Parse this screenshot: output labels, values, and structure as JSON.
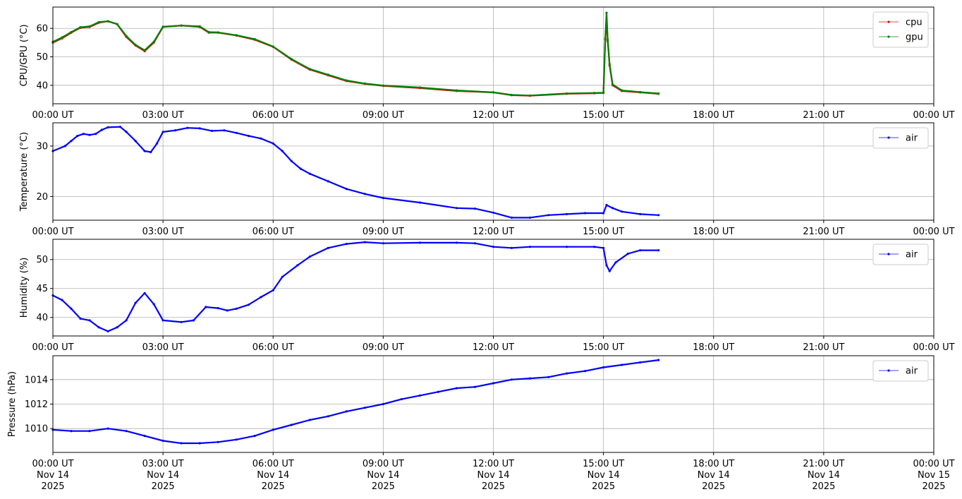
{
  "chart_data": [
    {
      "type": "line",
      "ylabel": "CPU/GPU (°C)",
      "ylim": [
        33.5,
        67.5
      ],
      "yticks": [
        40,
        50,
        60
      ],
      "xlim": [
        "2025-11-14 00:00",
        "2025-11-15 00:00"
      ],
      "xtick_labels": [
        "00:00 UT",
        "03:00 UT",
        "06:00 UT",
        "09:00 UT",
        "12:00 UT",
        "15:00 UT",
        "18:00 UT",
        "21:00 UT",
        "00:00 UT"
      ],
      "grid": true,
      "legend_position": "upper-right",
      "series": [
        {
          "name": "cpu",
          "color": "#ff0000",
          "points": [
            [
              "00:00",
              55.0
            ],
            [
              "00:15",
              56.5
            ],
            [
              "00:30",
              58.5
            ],
            [
              "00:45",
              60.2
            ],
            [
              "01:00",
              60.5
            ],
            [
              "01:15",
              62.0
            ],
            [
              "01:30",
              62.5
            ],
            [
              "01:45",
              61.5
            ],
            [
              "02:00",
              57.0
            ],
            [
              "02:15",
              54.0
            ],
            [
              "02:30",
              52.0
            ],
            [
              "02:45",
              55.0
            ],
            [
              "03:00",
              60.5
            ],
            [
              "03:30",
              61.0
            ],
            [
              "04:00",
              60.5
            ],
            [
              "04:15",
              58.5
            ],
            [
              "04:30",
              58.5
            ],
            [
              "05:00",
              57.5
            ],
            [
              "05:30",
              56.0
            ],
            [
              "06:00",
              53.5
            ],
            [
              "06:30",
              49.0
            ],
            [
              "07:00",
              45.5
            ],
            [
              "07:30",
              43.5
            ],
            [
              "08:00",
              41.5
            ],
            [
              "08:30",
              40.5
            ],
            [
              "09:00",
              39.8
            ],
            [
              "10:00",
              39.0
            ],
            [
              "11:00",
              38.0
            ],
            [
              "12:00",
              37.5
            ],
            [
              "12:30",
              36.5
            ],
            [
              "13:00",
              36.3
            ],
            [
              "14:00",
              37.0
            ],
            [
              "14:45",
              37.2
            ],
            [
              "15:00",
              37.3
            ],
            [
              "15:03",
              56.0
            ],
            [
              "15:05",
              63.0
            ],
            [
              "15:07",
              55.5
            ],
            [
              "15:10",
              47.0
            ],
            [
              "15:15",
              40.0
            ],
            [
              "15:30",
              38.0
            ],
            [
              "16:00",
              37.5
            ],
            [
              "16:30",
              37.0
            ]
          ]
        },
        {
          "name": "gpu",
          "color": "#008000",
          "points": [
            [
              "00:00",
              55.3
            ],
            [
              "00:15",
              56.8
            ],
            [
              "00:30",
              58.7
            ],
            [
              "00:45",
              60.4
            ],
            [
              "01:00",
              60.7
            ],
            [
              "01:15",
              62.2
            ],
            [
              "01:30",
              62.5
            ],
            [
              "01:45",
              61.5
            ],
            [
              "02:00",
              57.3
            ],
            [
              "02:15",
              54.2
            ],
            [
              "02:30",
              52.3
            ],
            [
              "02:45",
              55.3
            ],
            [
              "03:00",
              60.6
            ],
            [
              "03:30",
              61.0
            ],
            [
              "04:00",
              60.7
            ],
            [
              "04:15",
              58.7
            ],
            [
              "04:30",
              58.6
            ],
            [
              "05:00",
              57.6
            ],
            [
              "05:30",
              56.2
            ],
            [
              "06:00",
              53.6
            ],
            [
              "06:30",
              49.2
            ],
            [
              "07:00",
              45.7
            ],
            [
              "07:30",
              43.7
            ],
            [
              "08:00",
              41.7
            ],
            [
              "08:30",
              40.6
            ],
            [
              "09:00",
              39.9
            ],
            [
              "10:00",
              39.2
            ],
            [
              "11:00",
              38.2
            ],
            [
              "12:00",
              37.5
            ],
            [
              "12:30",
              36.6
            ],
            [
              "13:00",
              36.4
            ],
            [
              "14:00",
              37.1
            ],
            [
              "14:45",
              37.3
            ],
            [
              "15:00",
              37.4
            ],
            [
              "15:03",
              56.5
            ],
            [
              "15:05",
              65.5
            ],
            [
              "15:07",
              56.0
            ],
            [
              "15:10",
              47.5
            ],
            [
              "15:15",
              40.3
            ],
            [
              "15:30",
              38.2
            ],
            [
              "16:00",
              37.6
            ],
            [
              "16:30",
              37.1
            ]
          ]
        }
      ]
    },
    {
      "type": "line",
      "ylabel": "Temperature (°C)",
      "ylim": [
        15.3,
        34.6
      ],
      "yticks": [
        20,
        30
      ],
      "xlim": [
        "2025-11-14 00:00",
        "2025-11-15 00:00"
      ],
      "xtick_labels": [
        "00:00 UT",
        "03:00 UT",
        "06:00 UT",
        "09:00 UT",
        "12:00 UT",
        "15:00 UT",
        "18:00 UT",
        "21:00 UT",
        "00:00 UT"
      ],
      "grid": true,
      "legend_position": "upper-right",
      "series": [
        {
          "name": "air",
          "color": "#0000ff",
          "points": [
            [
              "00:00",
              29.0
            ],
            [
              "00:20",
              30.0
            ],
            [
              "00:30",
              31.0
            ],
            [
              "00:40",
              32.0
            ],
            [
              "00:50",
              32.4
            ],
            [
              "01:00",
              32.2
            ],
            [
              "01:10",
              32.4
            ],
            [
              "01:20",
              33.2
            ],
            [
              "01:30",
              33.7
            ],
            [
              "01:50",
              33.8
            ],
            [
              "02:00",
              32.8
            ],
            [
              "02:15",
              31.0
            ],
            [
              "02:30",
              29.0
            ],
            [
              "02:40",
              28.8
            ],
            [
              "02:50",
              30.5
            ],
            [
              "03:00",
              32.8
            ],
            [
              "03:20",
              33.1
            ],
            [
              "03:40",
              33.6
            ],
            [
              "04:00",
              33.5
            ],
            [
              "04:20",
              33.0
            ],
            [
              "04:40",
              33.1
            ],
            [
              "05:00",
              32.6
            ],
            [
              "05:20",
              32.0
            ],
            [
              "05:40",
              31.5
            ],
            [
              "06:00",
              30.5
            ],
            [
              "06:15",
              29.0
            ],
            [
              "06:30",
              27.0
            ],
            [
              "06:45",
              25.5
            ],
            [
              "07:00",
              24.5
            ],
            [
              "07:30",
              23.0
            ],
            [
              "08:00",
              21.5
            ],
            [
              "08:30",
              20.5
            ],
            [
              "09:00",
              19.7
            ],
            [
              "10:00",
              18.8
            ],
            [
              "11:00",
              17.7
            ],
            [
              "11:30",
              17.6
            ],
            [
              "12:00",
              16.8
            ],
            [
              "12:30",
              15.8
            ],
            [
              "13:00",
              15.8
            ],
            [
              "13:30",
              16.3
            ],
            [
              "14:00",
              16.5
            ],
            [
              "14:30",
              16.7
            ],
            [
              "15:00",
              16.7
            ],
            [
              "15:05",
              18.3
            ],
            [
              "15:15",
              17.7
            ],
            [
              "15:30",
              17.0
            ],
            [
              "16:00",
              16.5
            ],
            [
              "16:30",
              16.3
            ]
          ]
        }
      ]
    },
    {
      "type": "line",
      "ylabel": "Humidity (%)",
      "ylim": [
        36.8,
        53.5
      ],
      "yticks": [
        40,
        45,
        50
      ],
      "xlim": [
        "2025-11-14 00:00",
        "2025-11-15 00:00"
      ],
      "xtick_labels": [
        "00:00 UT",
        "03:00 UT",
        "06:00 UT",
        "09:00 UT",
        "12:00 UT",
        "15:00 UT",
        "18:00 UT",
        "21:00 UT",
        "00:00 UT"
      ],
      "grid": true,
      "legend_position": "upper-right",
      "series": [
        {
          "name": "air",
          "color": "#0000ff",
          "points": [
            [
              "00:00",
              43.8
            ],
            [
              "00:15",
              43.0
            ],
            [
              "00:30",
              41.5
            ],
            [
              "00:45",
              39.8
            ],
            [
              "01:00",
              39.5
            ],
            [
              "01:15",
              38.3
            ],
            [
              "01:30",
              37.6
            ],
            [
              "01:45",
              38.3
            ],
            [
              "02:00",
              39.5
            ],
            [
              "02:15",
              42.5
            ],
            [
              "02:30",
              44.2
            ],
            [
              "02:45",
              42.3
            ],
            [
              "03:00",
              39.5
            ],
            [
              "03:30",
              39.2
            ],
            [
              "03:50",
              39.5
            ],
            [
              "04:10",
              41.8
            ],
            [
              "04:30",
              41.6
            ],
            [
              "04:45",
              41.2
            ],
            [
              "05:00",
              41.5
            ],
            [
              "05:20",
              42.2
            ],
            [
              "05:40",
              43.5
            ],
            [
              "06:00",
              44.7
            ],
            [
              "06:15",
              47.0
            ],
            [
              "06:40",
              49.0
            ],
            [
              "07:00",
              50.5
            ],
            [
              "07:30",
              52.0
            ],
            [
              "08:00",
              52.7
            ],
            [
              "08:30",
              53.0
            ],
            [
              "09:00",
              52.8
            ],
            [
              "10:00",
              52.9
            ],
            [
              "11:00",
              52.9
            ],
            [
              "11:30",
              52.8
            ],
            [
              "12:00",
              52.2
            ],
            [
              "12:30",
              52.0
            ],
            [
              "13:00",
              52.2
            ],
            [
              "14:00",
              52.2
            ],
            [
              "14:45",
              52.2
            ],
            [
              "15:00",
              52.0
            ],
            [
              "15:05",
              49.0
            ],
            [
              "15:10",
              48.0
            ],
            [
              "15:20",
              49.5
            ],
            [
              "15:40",
              51.0
            ],
            [
              "16:00",
              51.6
            ],
            [
              "16:30",
              51.6
            ]
          ]
        }
      ]
    },
    {
      "type": "line",
      "ylabel": "Pressure (hPa)",
      "ylim": [
        1008.05,
        1015.95
      ],
      "yticks": [
        1010,
        1012,
        1014
      ],
      "xlim": [
        "2025-11-14 00:00",
        "2025-11-15 00:00"
      ],
      "xtick_labels": [
        "00:00 UT\nNov 14\n2025",
        "03:00 UT\nNov 14\n2025",
        "06:00 UT\nNov 14\n2025",
        "09:00 UT\nNov 14\n2025",
        "12:00 UT\nNov 14\n2025",
        "15:00 UT\nNov 14\n2025",
        "18:00 UT\nNov 14\n2025",
        "21:00 UT\nNov 14\n2025",
        "00:00 UT\nNov 15\n2025"
      ],
      "grid": true,
      "legend_position": "upper-right",
      "series": [
        {
          "name": "air",
          "color": "#0000ff",
          "points": [
            [
              "00:00",
              1009.9
            ],
            [
              "00:30",
              1009.8
            ],
            [
              "01:00",
              1009.8
            ],
            [
              "01:30",
              1010.0
            ],
            [
              "02:00",
              1009.8
            ],
            [
              "02:30",
              1009.4
            ],
            [
              "03:00",
              1009.0
            ],
            [
              "03:30",
              1008.8
            ],
            [
              "04:00",
              1008.8
            ],
            [
              "04:30",
              1008.9
            ],
            [
              "05:00",
              1009.1
            ],
            [
              "05:30",
              1009.4
            ],
            [
              "06:00",
              1009.9
            ],
            [
              "06:30",
              1010.3
            ],
            [
              "07:00",
              1010.7
            ],
            [
              "07:30",
              1011.0
            ],
            [
              "08:00",
              1011.4
            ],
            [
              "08:30",
              1011.7
            ],
            [
              "09:00",
              1012.0
            ],
            [
              "09:30",
              1012.4
            ],
            [
              "10:00",
              1012.7
            ],
            [
              "10:30",
              1013.0
            ],
            [
              "11:00",
              1013.3
            ],
            [
              "11:30",
              1013.4
            ],
            [
              "12:00",
              1013.7
            ],
            [
              "12:30",
              1014.0
            ],
            [
              "13:00",
              1014.1
            ],
            [
              "13:30",
              1014.2
            ],
            [
              "14:00",
              1014.5
            ],
            [
              "14:30",
              1014.7
            ],
            [
              "15:00",
              1015.0
            ],
            [
              "15:30",
              1015.2
            ],
            [
              "16:00",
              1015.4
            ],
            [
              "16:30",
              1015.6
            ]
          ]
        }
      ]
    }
  ]
}
